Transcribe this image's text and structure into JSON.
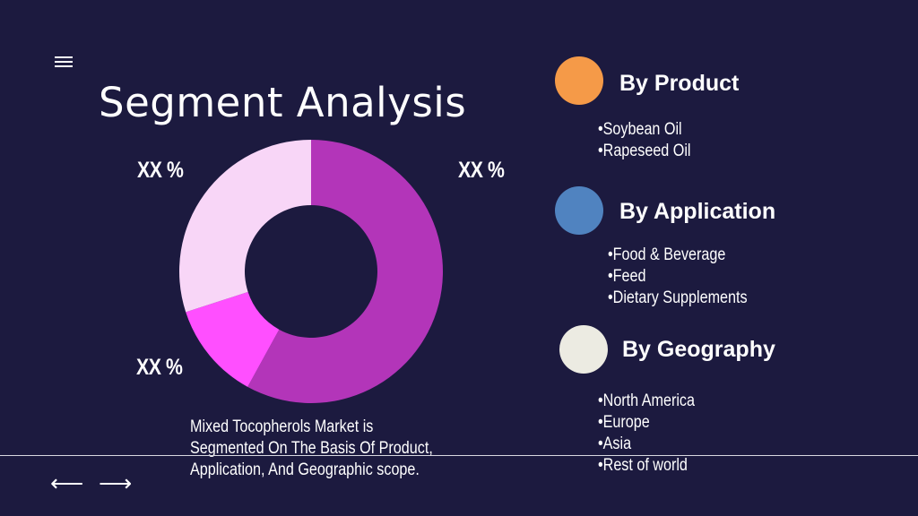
{
  "title": "Segment Analysis",
  "chart_labels": {
    "top_left": "XX %",
    "top_right": "XX %",
    "bottom_left": "XX %"
  },
  "caption": "Mixed Tocopherols Market is Segmented On The Basis Of Product, Application, And Geographic scope.",
  "icons": {
    "menu": "hamburger-menu-icon",
    "prev": "left-arrow-icon",
    "next": "right-arrow-icon"
  },
  "nav": {
    "prev": "⟵",
    "next": "⟶"
  },
  "segments": [
    {
      "title": "By Product",
      "color": "#f59a48",
      "items": [
        "Soybean Oil",
        "Rapeseed Oil"
      ]
    },
    {
      "title": "By Application",
      "color": "#5083c0",
      "items": [
        "Food & Beverage",
        "Feed",
        "Dietary Supplements"
      ]
    },
    {
      "title": "By Geography",
      "color": "#ecebe2",
      "items": [
        "North America",
        "Europe",
        "Asia",
        "Rest of world"
      ]
    }
  ],
  "chart_data": {
    "type": "pie",
    "title": "",
    "slices": [
      {
        "label": "XX %",
        "value": 58,
        "color": "#b335b9"
      },
      {
        "label": "XX %",
        "value": 12,
        "color": "#ff4fff"
      },
      {
        "label": "XX %",
        "value": 30,
        "color": "#f8d6f7"
      }
    ]
  }
}
